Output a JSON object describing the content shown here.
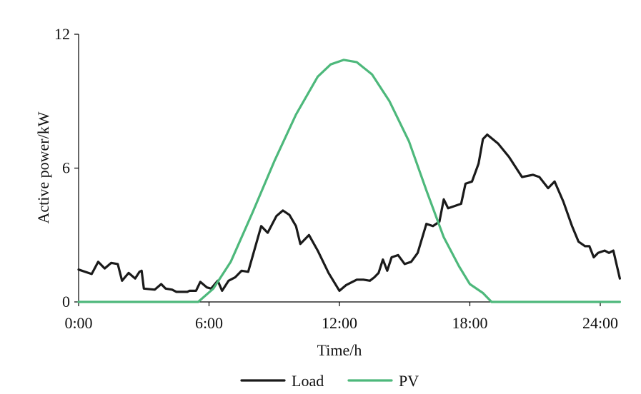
{
  "chart_data": {
    "type": "line",
    "title": "",
    "xlabel": "Time/h",
    "ylabel": "Active power/kW",
    "xlim": [
      0,
      24
    ],
    "ylim": [
      0,
      12
    ],
    "x_ticks": [
      0,
      6,
      12,
      18,
      24
    ],
    "x_tick_labels": [
      "0:00",
      "6:00",
      "12:00",
      "18:00",
      "24:00"
    ],
    "y_ticks": [
      0,
      6,
      12
    ],
    "y_tick_labels": [
      "0",
      "6",
      "12"
    ],
    "grid": false,
    "legend_position": "bottom",
    "series": [
      {
        "name": "Load",
        "color": "#1a1a1a",
        "points": [
          [
            0.0,
            1.45
          ],
          [
            0.6,
            1.25
          ],
          [
            0.9,
            1.8
          ],
          [
            1.2,
            1.5
          ],
          [
            1.5,
            1.75
          ],
          [
            1.8,
            1.7
          ],
          [
            2.0,
            0.95
          ],
          [
            2.3,
            1.3
          ],
          [
            2.6,
            1.05
          ],
          [
            2.8,
            1.35
          ],
          [
            2.9,
            1.4
          ],
          [
            3.0,
            0.6
          ],
          [
            3.5,
            0.55
          ],
          [
            3.8,
            0.8
          ],
          [
            4.0,
            0.6
          ],
          [
            4.3,
            0.55
          ],
          [
            4.5,
            0.45
          ],
          [
            5.0,
            0.45
          ],
          [
            5.1,
            0.5
          ],
          [
            5.4,
            0.5
          ],
          [
            5.6,
            0.9
          ],
          [
            5.9,
            0.65
          ],
          [
            6.1,
            0.6
          ],
          [
            6.4,
            0.95
          ],
          [
            6.6,
            0.5
          ],
          [
            6.9,
            0.95
          ],
          [
            7.2,
            1.1
          ],
          [
            7.5,
            1.4
          ],
          [
            7.8,
            1.35
          ],
          [
            8.4,
            3.4
          ],
          [
            8.7,
            3.1
          ],
          [
            9.1,
            3.85
          ],
          [
            9.4,
            4.1
          ],
          [
            9.7,
            3.9
          ],
          [
            10.0,
            3.4
          ],
          [
            10.2,
            2.6
          ],
          [
            10.6,
            3.0
          ],
          [
            11.0,
            2.3
          ],
          [
            11.5,
            1.3
          ],
          [
            12.0,
            0.5
          ],
          [
            12.3,
            0.75
          ],
          [
            12.5,
            0.85
          ],
          [
            12.8,
            1.0
          ],
          [
            13.1,
            1.0
          ],
          [
            13.4,
            0.95
          ],
          [
            13.6,
            1.1
          ],
          [
            13.8,
            1.3
          ],
          [
            14.0,
            1.9
          ],
          [
            14.2,
            1.4
          ],
          [
            14.4,
            2.0
          ],
          [
            14.7,
            2.1
          ],
          [
            15.0,
            1.7
          ],
          [
            15.3,
            1.8
          ],
          [
            15.6,
            2.2
          ],
          [
            16.0,
            3.5
          ],
          [
            16.3,
            3.4
          ],
          [
            16.6,
            3.6
          ],
          [
            16.8,
            4.6
          ],
          [
            17.0,
            4.2
          ],
          [
            17.3,
            4.3
          ],
          [
            17.6,
            4.4
          ],
          [
            17.8,
            5.3
          ],
          [
            18.1,
            5.4
          ],
          [
            18.4,
            6.2
          ],
          [
            18.6,
            7.3
          ],
          [
            18.8,
            7.5
          ],
          [
            19.3,
            7.1
          ],
          [
            19.8,
            6.5
          ],
          [
            20.4,
            5.6
          ],
          [
            20.9,
            5.7
          ],
          [
            21.2,
            5.6
          ],
          [
            21.6,
            5.1
          ],
          [
            21.9,
            5.4
          ],
          [
            22.3,
            4.5
          ],
          [
            22.7,
            3.4
          ],
          [
            23.0,
            2.7
          ],
          [
            23.3,
            2.5
          ],
          [
            23.5,
            2.5
          ],
          [
            23.7,
            2.0
          ],
          [
            23.9,
            2.2
          ],
          [
            24.2,
            2.3
          ],
          [
            24.4,
            2.2
          ],
          [
            24.6,
            2.3
          ],
          [
            24.9,
            1.05
          ]
        ]
      },
      {
        "name": "PV",
        "color": "#4db87b",
        "points": [
          [
            0.0,
            0.0
          ],
          [
            5.5,
            0.0
          ],
          [
            6.2,
            0.6
          ],
          [
            7.0,
            1.8
          ],
          [
            8.0,
            4.0
          ],
          [
            9.0,
            6.3
          ],
          [
            10.0,
            8.4
          ],
          [
            11.0,
            10.1
          ],
          [
            11.6,
            10.65
          ],
          [
            12.2,
            10.85
          ],
          [
            12.8,
            10.75
          ],
          [
            13.5,
            10.2
          ],
          [
            14.3,
            9.0
          ],
          [
            15.2,
            7.2
          ],
          [
            16.0,
            5.0
          ],
          [
            16.8,
            2.9
          ],
          [
            17.5,
            1.6
          ],
          [
            18.0,
            0.8
          ],
          [
            18.6,
            0.4
          ],
          [
            19.0,
            0.0
          ],
          [
            24.9,
            0.0
          ]
        ]
      }
    ]
  }
}
